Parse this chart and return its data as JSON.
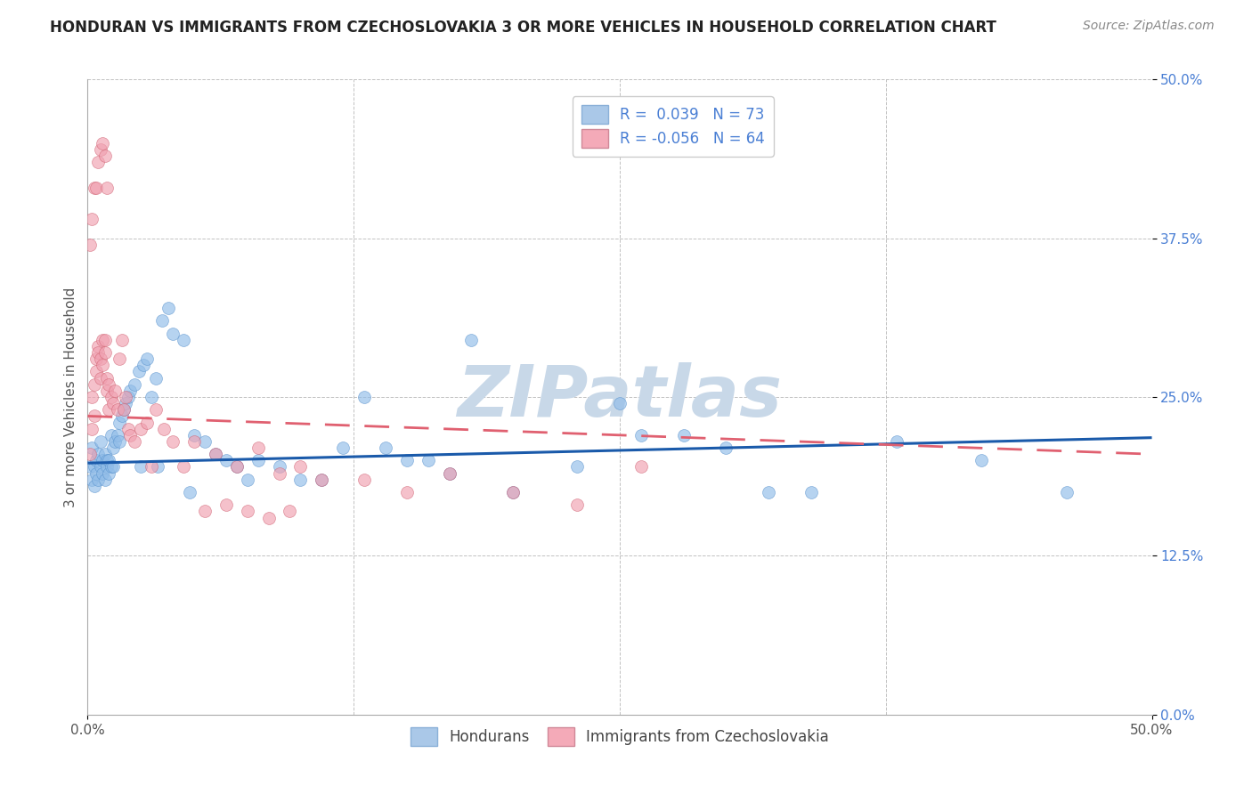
{
  "title": "HONDURAN VS IMMIGRANTS FROM CZECHOSLOVAKIA 3 OR MORE VEHICLES IN HOUSEHOLD CORRELATION CHART",
  "source": "Source: ZipAtlas.com",
  "ylabel": "3 or more Vehicles in Household",
  "xlim": [
    0.0,
    0.5
  ],
  "ylim": [
    0.0,
    0.5
  ],
  "ytick_vals": [
    0.0,
    0.125,
    0.25,
    0.375,
    0.5
  ],
  "ytick_labels": [
    "0.0%",
    "12.5%",
    "25.0%",
    "37.5%",
    "50.0%"
  ],
  "xtick_positions": [
    0.0,
    0.5
  ],
  "xtick_labels": [
    "0.0%",
    "50.0%"
  ],
  "legend1_entries": [
    "R =  0.039   N = 73",
    "R = -0.056   N = 64"
  ],
  "legend2_entries": [
    "Hondurans",
    "Immigrants from Czechoslovakia"
  ],
  "watermark": "ZIPatlas",
  "blue_scatter_x": [
    0.001,
    0.002,
    0.002,
    0.003,
    0.003,
    0.004,
    0.004,
    0.005,
    0.005,
    0.006,
    0.006,
    0.007,
    0.007,
    0.008,
    0.008,
    0.009,
    0.009,
    0.01,
    0.01,
    0.011,
    0.011,
    0.012,
    0.013,
    0.014,
    0.015,
    0.016,
    0.017,
    0.018,
    0.019,
    0.02,
    0.022,
    0.024,
    0.026,
    0.028,
    0.03,
    0.032,
    0.035,
    0.038,
    0.04,
    0.045,
    0.05,
    0.055,
    0.06,
    0.065,
    0.07,
    0.08,
    0.09,
    0.1,
    0.11,
    0.12,
    0.13,
    0.15,
    0.17,
    0.2,
    0.23,
    0.26,
    0.3,
    0.34,
    0.38,
    0.42,
    0.46,
    0.25,
    0.18,
    0.32,
    0.14,
    0.075,
    0.048,
    0.033,
    0.025,
    0.015,
    0.012,
    0.16,
    0.28
  ],
  "blue_scatter_y": [
    0.195,
    0.185,
    0.21,
    0.195,
    0.18,
    0.2,
    0.19,
    0.185,
    0.205,
    0.195,
    0.215,
    0.2,
    0.19,
    0.205,
    0.185,
    0.2,
    0.195,
    0.19,
    0.2,
    0.195,
    0.22,
    0.21,
    0.215,
    0.22,
    0.23,
    0.235,
    0.24,
    0.245,
    0.25,
    0.255,
    0.26,
    0.27,
    0.275,
    0.28,
    0.25,
    0.265,
    0.31,
    0.32,
    0.3,
    0.295,
    0.22,
    0.215,
    0.205,
    0.2,
    0.195,
    0.2,
    0.195,
    0.185,
    0.185,
    0.21,
    0.25,
    0.2,
    0.19,
    0.175,
    0.195,
    0.22,
    0.21,
    0.175,
    0.215,
    0.2,
    0.175,
    0.245,
    0.295,
    0.175,
    0.21,
    0.185,
    0.175,
    0.195,
    0.195,
    0.215,
    0.195,
    0.2,
    0.22
  ],
  "pink_scatter_x": [
    0.001,
    0.002,
    0.002,
    0.003,
    0.003,
    0.004,
    0.004,
    0.005,
    0.005,
    0.006,
    0.006,
    0.007,
    0.007,
    0.008,
    0.008,
    0.009,
    0.009,
    0.01,
    0.01,
    0.011,
    0.012,
    0.013,
    0.014,
    0.015,
    0.016,
    0.017,
    0.018,
    0.019,
    0.02,
    0.022,
    0.025,
    0.028,
    0.032,
    0.036,
    0.04,
    0.045,
    0.05,
    0.06,
    0.07,
    0.08,
    0.09,
    0.1,
    0.11,
    0.13,
    0.15,
    0.17,
    0.2,
    0.23,
    0.26,
    0.001,
    0.002,
    0.003,
    0.004,
    0.005,
    0.006,
    0.007,
    0.008,
    0.009,
    0.03,
    0.055,
    0.065,
    0.075,
    0.085,
    0.095
  ],
  "pink_scatter_y": [
    0.205,
    0.225,
    0.25,
    0.235,
    0.26,
    0.27,
    0.28,
    0.29,
    0.285,
    0.265,
    0.28,
    0.275,
    0.295,
    0.285,
    0.295,
    0.265,
    0.255,
    0.26,
    0.24,
    0.25,
    0.245,
    0.255,
    0.24,
    0.28,
    0.295,
    0.24,
    0.25,
    0.225,
    0.22,
    0.215,
    0.225,
    0.23,
    0.24,
    0.225,
    0.215,
    0.195,
    0.215,
    0.205,
    0.195,
    0.21,
    0.19,
    0.195,
    0.185,
    0.185,
    0.175,
    0.19,
    0.175,
    0.165,
    0.195,
    0.37,
    0.39,
    0.415,
    0.415,
    0.435,
    0.445,
    0.45,
    0.44,
    0.415,
    0.195,
    0.16,
    0.165,
    0.16,
    0.155,
    0.16
  ],
  "blue_line_x": [
    0.0,
    0.5
  ],
  "blue_line_y": [
    0.198,
    0.218
  ],
  "pink_line_x": [
    0.0,
    0.5
  ],
  "pink_line_y": [
    0.235,
    0.205
  ],
  "scatter_size": 100,
  "scatter_alpha": 0.65,
  "blue_marker_color": "#90bce8",
  "blue_edge_color": "#5590cc",
  "pink_marker_color": "#f0a0b0",
  "pink_edge_color": "#d06070",
  "blue_legend_color": "#aac8e8",
  "pink_legend_color": "#f4aab8",
  "blue_line_color": "#1a5aaa",
  "pink_line_color": "#e06070",
  "grid_color": "#bbbbbb",
  "grid_linestyle": "--",
  "title_fontsize": 12,
  "source_fontsize": 10,
  "ylabel_fontsize": 11,
  "tick_fontsize": 11,
  "legend1_fontsize": 12,
  "legend2_fontsize": 12,
  "tick_color_right": "#4a7fd4",
  "tick_color_bottom": "#555555",
  "watermark_color": "#c8d8e8",
  "watermark_fontsize": 58
}
